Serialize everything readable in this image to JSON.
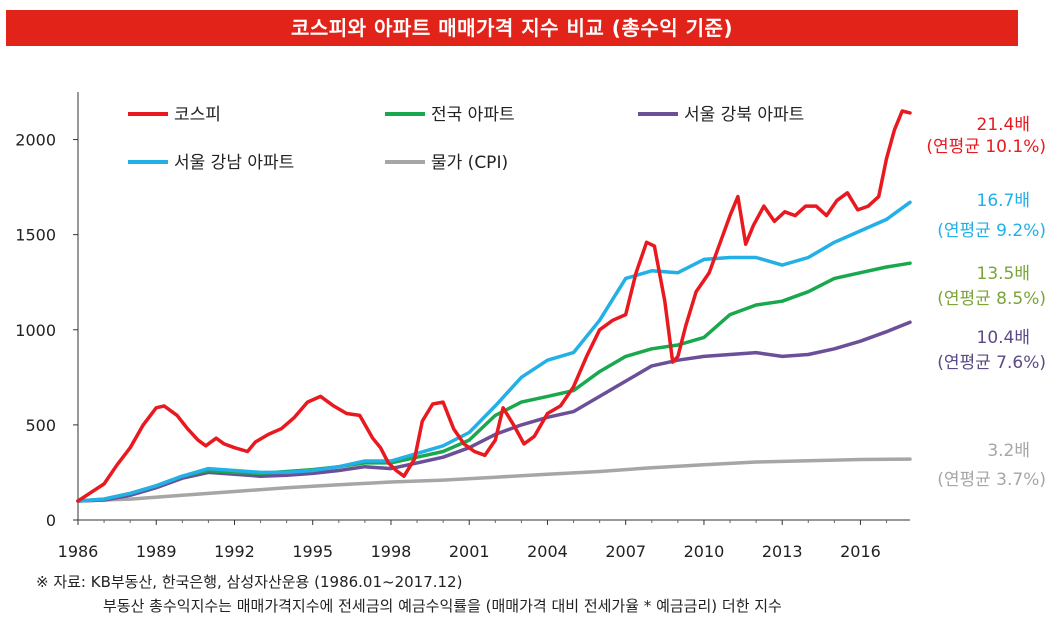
{
  "header": {
    "title": "코스피와 아파트 매매가격 지수 비교 (총수익 기준)"
  },
  "chart_data": {
    "type": "line",
    "xlabel": "",
    "ylabel": "",
    "xlim": [
      1986,
      2017.9
    ],
    "ylim": [
      0,
      2250
    ],
    "x_ticks": [
      "1986",
      "1989",
      "1992",
      "1995",
      "1998",
      "2001",
      "2004",
      "2007",
      "2010",
      "2013",
      "2016"
    ],
    "y_ticks": [
      "0",
      "500",
      "1000",
      "1500",
      "2000"
    ],
    "grid": false,
    "legend": [
      "코스피",
      "전국 아파트",
      "서울 강북 아파트",
      "서울 강남 아파트",
      "물가 (CPI)"
    ],
    "series": [
      {
        "name": "코스피",
        "color": "#e8191f",
        "x": [
          1986.0,
          1986.5,
          1987.0,
          1987.5,
          1988.0,
          1988.5,
          1989.0,
          1989.3,
          1989.8,
          1990.2,
          1990.6,
          1990.9,
          1991.3,
          1991.6,
          1992.0,
          1992.5,
          1992.8,
          1993.3,
          1993.8,
          1994.3,
          1994.8,
          1995.3,
          1995.8,
          1996.3,
          1996.8,
          1997.3,
          1997.6,
          1997.9,
          1998.2,
          1998.5,
          1998.9,
          1999.2,
          1999.6,
          2000.0,
          2000.4,
          2000.8,
          2001.2,
          2001.6,
          2002.0,
          2002.3,
          2002.7,
          2003.1,
          2003.5,
          2004.0,
          2004.5,
          2005.0,
          2005.5,
          2006.0,
          2006.5,
          2007.0,
          2007.4,
          2007.8,
          2008.1,
          2008.5,
          2008.8,
          2009.0,
          2009.3,
          2009.7,
          2010.2,
          2010.6,
          2011.0,
          2011.3,
          2011.6,
          2011.9,
          2012.3,
          2012.7,
          2013.1,
          2013.5,
          2013.9,
          2014.3,
          2014.7,
          2015.1,
          2015.5,
          2015.9,
          2016.3,
          2016.7,
          2017.0,
          2017.3,
          2017.6,
          2017.9
        ],
        "values": [
          100,
          145,
          190,
          290,
          380,
          500,
          590,
          600,
          550,
          480,
          420,
          390,
          430,
          400,
          380,
          360,
          410,
          450,
          480,
          540,
          620,
          650,
          600,
          560,
          550,
          430,
          380,
          300,
          260,
          230,
          320,
          520,
          610,
          620,
          480,
          400,
          360,
          340,
          420,
          590,
          500,
          400,
          440,
          560,
          600,
          700,
          860,
          1000,
          1050,
          1080,
          1300,
          1460,
          1440,
          1150,
          830,
          860,
          1020,
          1200,
          1300,
          1450,
          1600,
          1700,
          1450,
          1550,
          1650,
          1570,
          1620,
          1600,
          1650,
          1650,
          1600,
          1680,
          1720,
          1630,
          1650,
          1700,
          1900,
          2050,
          2150,
          2140
        ]
      },
      {
        "name": "전국 아파트",
        "color": "#19a84d",
        "x": [
          1986,
          1987,
          1988,
          1989,
          1990,
          1991,
          1992,
          1993,
          1994,
          1995,
          1996,
          1997,
          1998,
          1999,
          2000,
          2001,
          2002,
          2003,
          2004,
          2005,
          2006,
          2007,
          2008,
          2009,
          2010,
          2011,
          2012,
          2013,
          2014,
          2015,
          2016,
          2017,
          2017.9
        ],
        "values": [
          100,
          110,
          140,
          180,
          230,
          260,
          250,
          245,
          255,
          265,
          280,
          300,
          300,
          330,
          360,
          420,
          550,
          620,
          650,
          680,
          780,
          860,
          900,
          920,
          960,
          1080,
          1130,
          1150,
          1200,
          1270,
          1300,
          1330,
          1350
        ]
      },
      {
        "name": "서울 강북 아파트",
        "color": "#6b4f98",
        "x": [
          1986,
          1987,
          1988,
          1989,
          1990,
          1991,
          1992,
          1993,
          1994,
          1995,
          1996,
          1997,
          1998,
          1999,
          2000,
          2001,
          2002,
          2003,
          2004,
          2005,
          2006,
          2007,
          2008,
          2009,
          2010,
          2011,
          2012,
          2013,
          2014,
          2015,
          2016,
          2017,
          2017.9
        ],
        "values": [
          100,
          105,
          130,
          170,
          220,
          250,
          240,
          230,
          235,
          245,
          260,
          280,
          270,
          300,
          330,
          380,
          450,
          500,
          540,
          570,
          650,
          730,
          810,
          840,
          860,
          870,
          880,
          860,
          870,
          900,
          940,
          990,
          1040
        ]
      },
      {
        "name": "서울 강남 아파트",
        "color": "#22b0e6",
        "x": [
          1986,
          1987,
          1988,
          1989,
          1990,
          1991,
          1992,
          1993,
          1994,
          1995,
          1996,
          1997,
          1998,
          1999,
          2000,
          2001,
          2002,
          2003,
          2004,
          2005,
          2006,
          2007,
          2008,
          2009,
          2010,
          2011,
          2012,
          2013,
          2014,
          2015,
          2016,
          2017,
          2017.9
        ],
        "values": [
          100,
          110,
          140,
          180,
          230,
          270,
          260,
          250,
          250,
          260,
          280,
          310,
          310,
          350,
          390,
          460,
          600,
          750,
          840,
          880,
          1050,
          1270,
          1310,
          1300,
          1370,
          1380,
          1380,
          1340,
          1380,
          1460,
          1520,
          1580,
          1670
        ]
      },
      {
        "name": "물가 (CPI)",
        "color": "#a6a6a6",
        "x": [
          1986,
          1988,
          1990,
          1992,
          1994,
          1996,
          1998,
          2000,
          2002,
          2004,
          2006,
          2008,
          2010,
          2012,
          2014,
          2016,
          2017.9
        ],
        "values": [
          100,
          110,
          130,
          150,
          170,
          185,
          200,
          210,
          225,
          240,
          255,
          275,
          290,
          305,
          312,
          318,
          320
        ]
      }
    ],
    "end_labels": [
      {
        "multiple": "21.4배",
        "annual": "(연평균 10.1%)",
        "color": "#e8191f"
      },
      {
        "multiple": "16.7배",
        "annual": "(연평균 9.2%)",
        "color": "#22b0e6"
      },
      {
        "multiple": "13.5배",
        "annual": "(연평균 8.5%)",
        "color": "#7aa43a"
      },
      {
        "multiple": "10.4배",
        "annual": "(연평균 7.6%)",
        "color": "#5d4a85"
      },
      {
        "multiple": "3.2배",
        "annual": "(연평균 3.7%)",
        "color": "#a6a6a6"
      }
    ]
  },
  "footnote": {
    "source": "※ 자료: KB부동산, 한국은행, 삼성자산운용 (1986.01~2017.12)",
    "note": "부동산 총수익지수는 매매가격지수에 전세금의 예금수익률을 (매매가격 대비 전세가율 * 예금금리) 더한 지수"
  }
}
